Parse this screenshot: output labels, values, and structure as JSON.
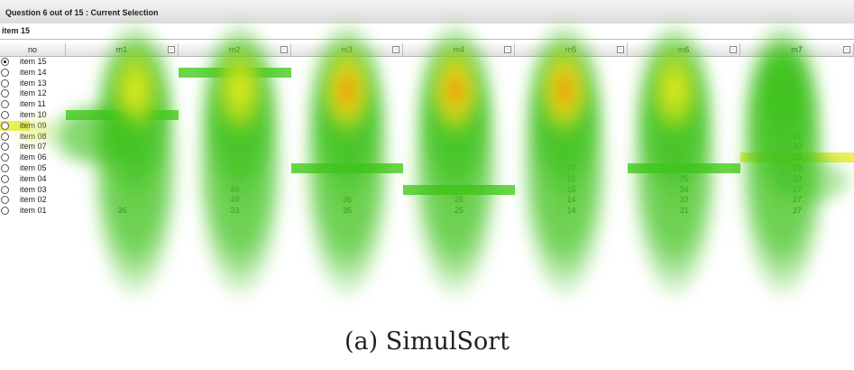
{
  "header": {
    "question": "Question 6 out of 15 : Current Selection"
  },
  "selection": {
    "current": "item 15"
  },
  "table": {
    "columns": [
      "no",
      "m1",
      "m2",
      "m3",
      "m4",
      "m5",
      "m6",
      "m7"
    ],
    "rows": [
      {
        "label": "item 15",
        "selected": true,
        "values": [
          "",
          "",
          "",
          "",
          "",
          "",
          ""
        ]
      },
      {
        "label": "item 14",
        "selected": false,
        "values": [
          "",
          "",
          "",
          "",
          "",
          "",
          ""
        ]
      },
      {
        "label": "item 13",
        "selected": false,
        "values": [
          "",
          "",
          "",
          "",
          "",
          "",
          ""
        ]
      },
      {
        "label": "item 12",
        "selected": false,
        "values": [
          "",
          "",
          "",
          "",
          "",
          "",
          ""
        ]
      },
      {
        "label": "item 11",
        "selected": false,
        "values": [
          "",
          "",
          "",
          "",
          "",
          "",
          ""
        ]
      },
      {
        "label": "item 10",
        "selected": false,
        "values": [
          "",
          "",
          "",
          "",
          "",
          "",
          ""
        ]
      },
      {
        "label": "item 09",
        "selected": false,
        "values": [
          "",
          "",
          "",
          "",
          "",
          "",
          ""
        ]
      },
      {
        "label": "item 08",
        "selected": false,
        "values": [
          "",
          "",
          "",
          "",
          "",
          "",
          "31"
        ]
      },
      {
        "label": "item 07",
        "selected": false,
        "values": [
          "",
          "",
          "",
          "",
          "",
          "",
          "30"
        ]
      },
      {
        "label": "item 06",
        "selected": false,
        "values": [
          "",
          "",
          "",
          "",
          "",
          "",
          "29"
        ]
      },
      {
        "label": "item 05",
        "selected": false,
        "values": [
          "",
          "",
          "",
          "",
          "17",
          "",
          "29"
        ]
      },
      {
        "label": "item 04",
        "selected": false,
        "values": [
          "",
          "",
          "",
          "",
          "16",
          "35",
          "29"
        ]
      },
      {
        "label": "item 03",
        "selected": false,
        "values": [
          "",
          "49",
          "",
          "",
          "15",
          "34",
          "27"
        ]
      },
      {
        "label": "item 02",
        "selected": false,
        "values": [
          "",
          "49",
          "36",
          "25",
          "14",
          "32",
          "27"
        ]
      },
      {
        "label": "item 01",
        "selected": false,
        "values": [
          "36",
          "33",
          "35",
          "25",
          "14",
          "31",
          "27"
        ]
      }
    ]
  },
  "caption": "(a)  SimulSort",
  "colors": {
    "heat_green": "#3fc21c",
    "heat_yellow": "#f2ef1e",
    "heat_orange": "#ff8a00",
    "highlight_green": "#4fcf2a",
    "highlight_yellow": "#e8ec3c"
  }
}
